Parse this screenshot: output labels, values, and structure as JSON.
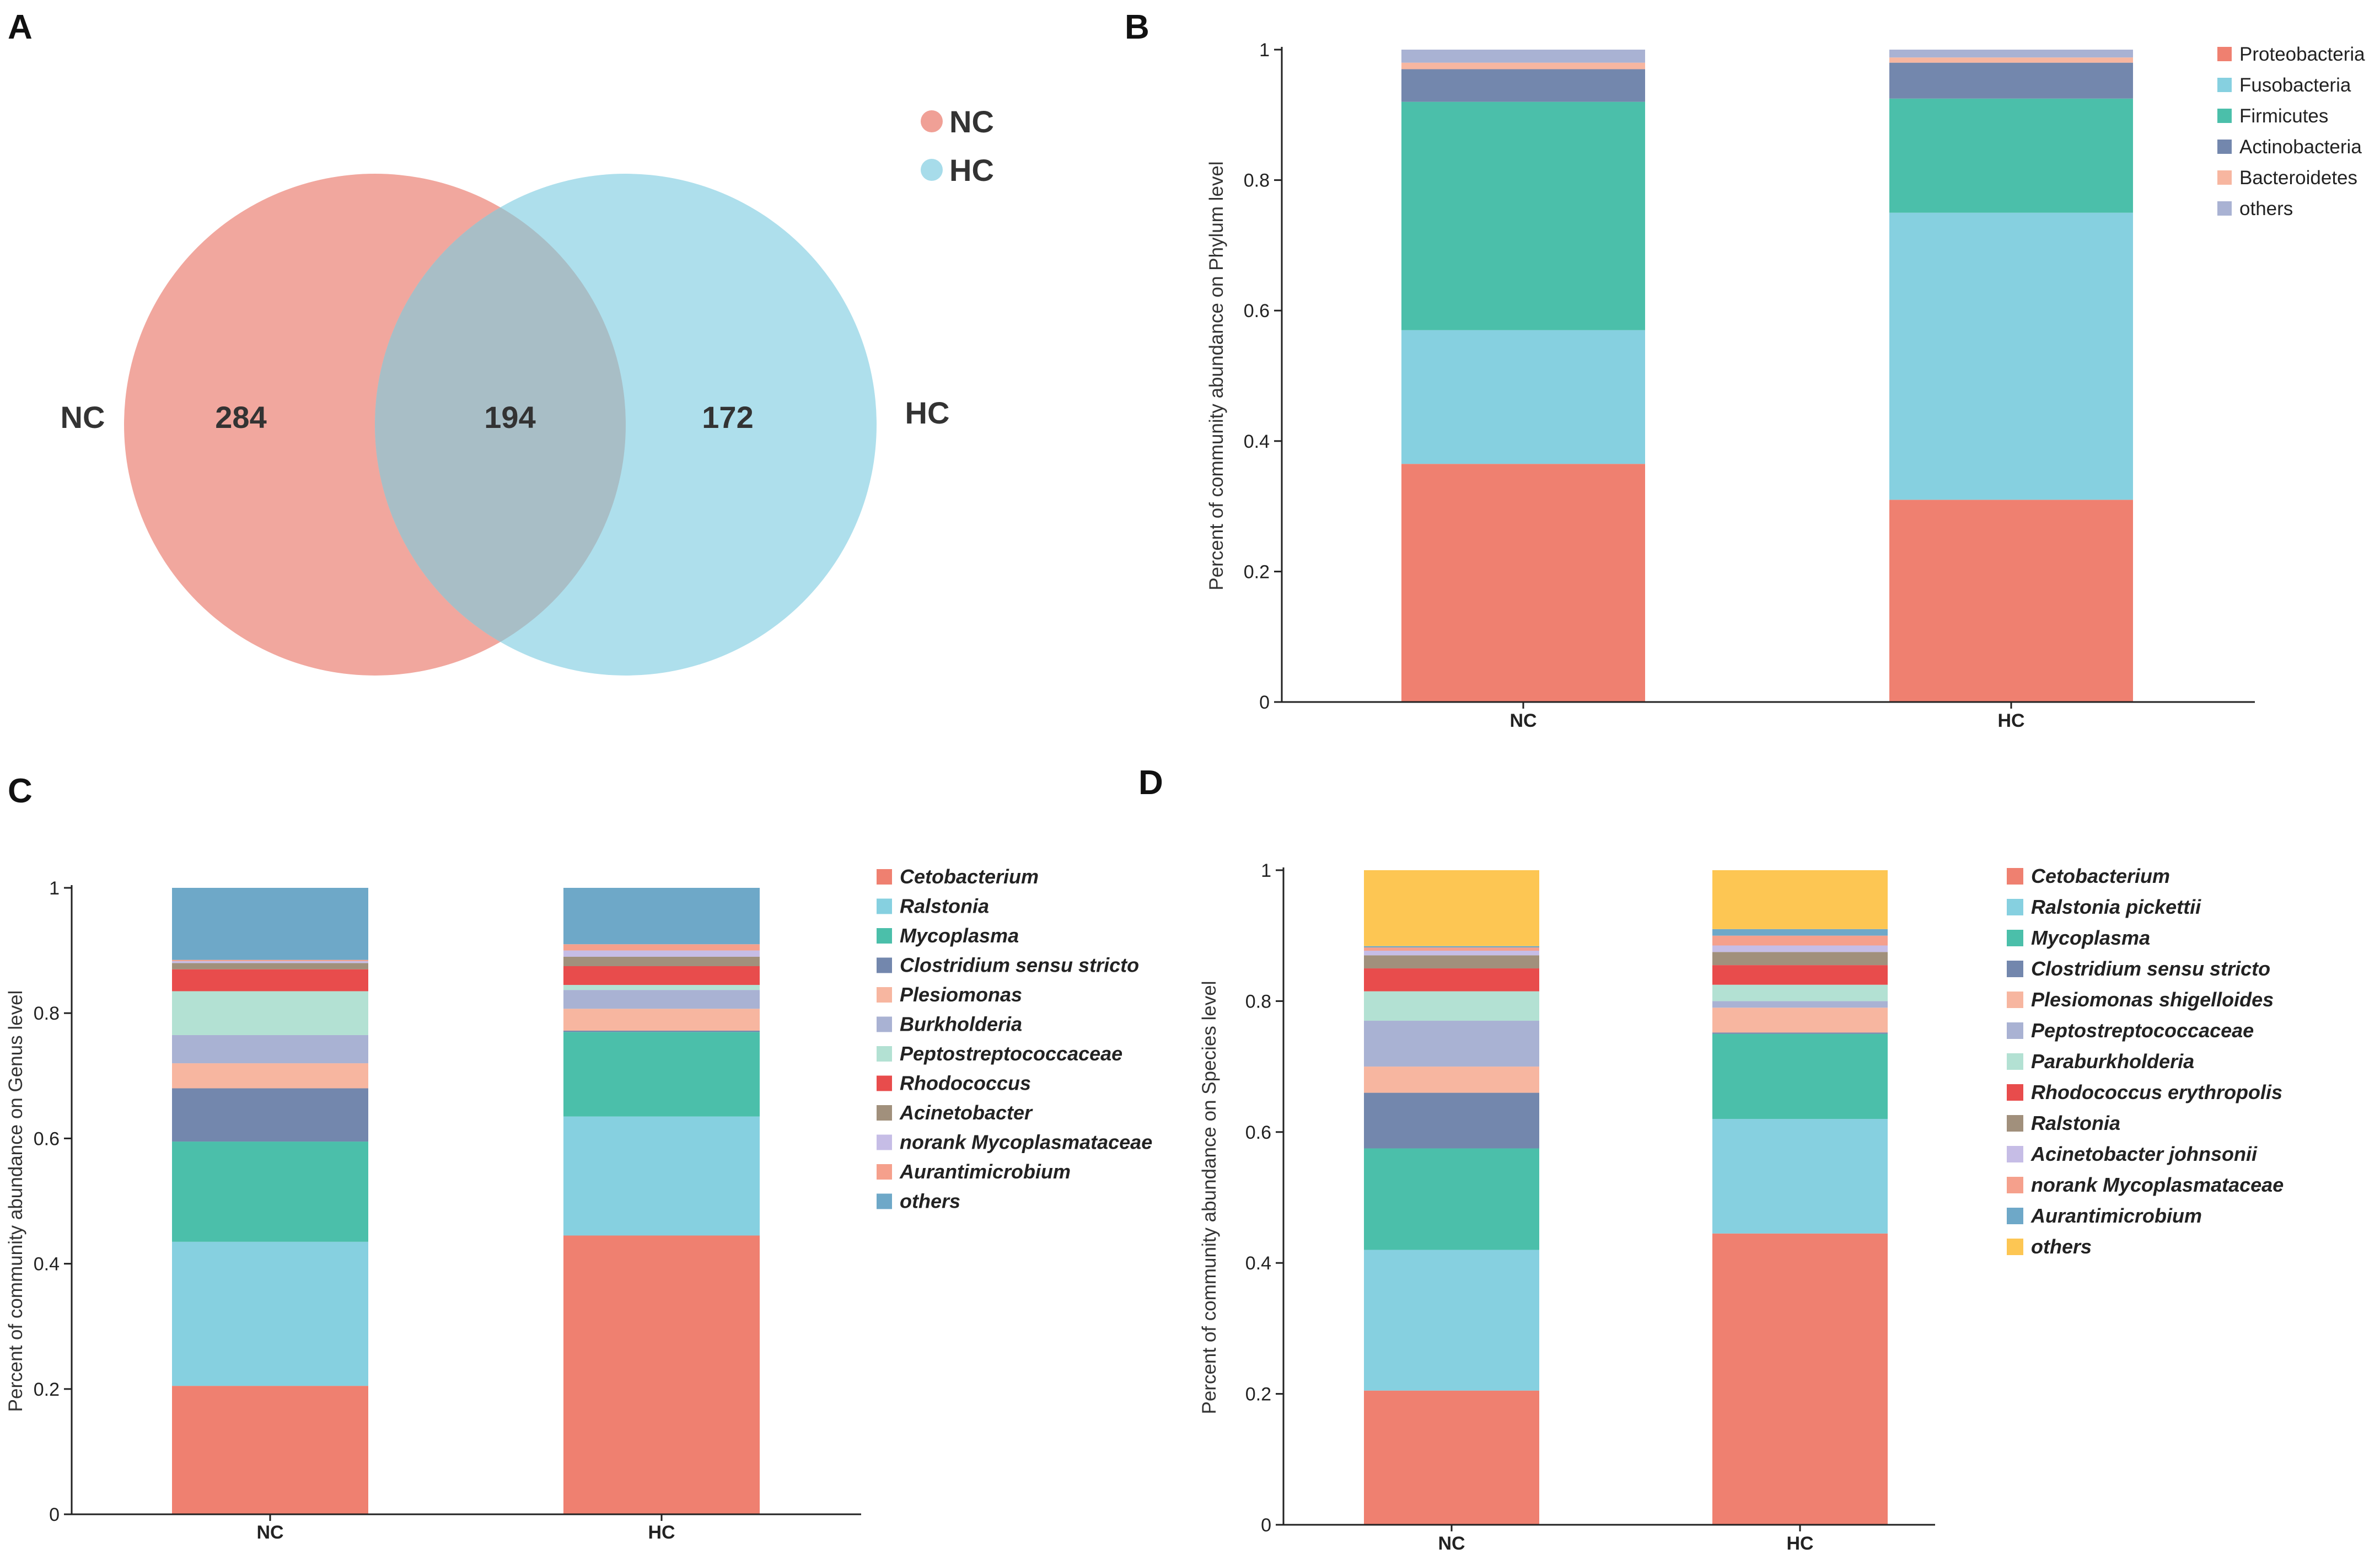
{
  "panels": {
    "A": "A",
    "B": "B",
    "C": "C",
    "D": "D"
  },
  "venn": {
    "legend": [
      {
        "name": "NC",
        "color": "#f0a096"
      },
      {
        "name": "HC",
        "color": "#a7dcea"
      }
    ],
    "left_label": "NC",
    "right_label": "HC",
    "left_only": "284",
    "overlap": "194",
    "right_only": "172"
  },
  "chart_data": [
    {
      "id": "B",
      "type": "bar",
      "stacked": true,
      "ylabel": "Percent of community abundance on Phylum level",
      "categories": [
        "NC",
        "HC"
      ],
      "ylim": [
        0,
        1
      ],
      "yticks": [
        "0",
        "0.2",
        "0.4",
        "0.6",
        "0.8",
        "1"
      ],
      "italic_legend": false,
      "series": [
        {
          "name": "Proteobacteria",
          "color": "#ef8070",
          "values": [
            0.365,
            0.31
          ]
        },
        {
          "name": "Fusobacteria",
          "color": "#86d0e0",
          "values": [
            0.205,
            0.44
          ]
        },
        {
          "name": "Firmicutes",
          "color": "#4bbfaa",
          "values": [
            0.35,
            0.175
          ]
        },
        {
          "name": "Actinobacteria",
          "color": "#7387ad",
          "values": [
            0.05,
            0.055
          ]
        },
        {
          "name": "Bacteroidetes",
          "color": "#f7b6a0",
          "values": [
            0.01,
            0.008
          ]
        },
        {
          "name": "others",
          "color": "#a9b2d3",
          "values": [
            0.02,
            0.012
          ]
        }
      ]
    },
    {
      "id": "C",
      "type": "bar",
      "stacked": true,
      "ylabel": "Percent of community abundance on Genus level",
      "categories": [
        "NC",
        "HC"
      ],
      "ylim": [
        0,
        1
      ],
      "yticks": [
        "0",
        "0.2",
        "0.4",
        "0.6",
        "0.8",
        "1"
      ],
      "italic_legend": true,
      "series": [
        {
          "name": "Cetobacterium",
          "color": "#ef8070",
          "values": [
            0.205,
            0.445
          ]
        },
        {
          "name": "Ralstonia",
          "color": "#86d0e0",
          "values": [
            0.23,
            0.19
          ]
        },
        {
          "name": "Mycoplasma",
          "color": "#4bbfaa",
          "values": [
            0.16,
            0.135
          ]
        },
        {
          "name": "Clostridium  sensu  stricto",
          "color": "#7387ad",
          "values": [
            0.085,
            0.002
          ]
        },
        {
          "name": "Plesiomonas",
          "color": "#f7b6a0",
          "values": [
            0.04,
            0.035
          ]
        },
        {
          "name": "Burkholderia",
          "color": "#a9b2d3",
          "values": [
            0.045,
            0.03
          ]
        },
        {
          "name": "Peptostreptococcaceae",
          "color": "#b3e1d3",
          "values": [
            0.07,
            0.008
          ]
        },
        {
          "name": "Rhodococcus",
          "color": "#e84c4c",
          "values": [
            0.035,
            0.03
          ]
        },
        {
          "name": "Acinetobacter",
          "color": "#a1907c",
          "values": [
            0.01,
            0.015
          ]
        },
        {
          "name": "norank  Mycoplasmataceae",
          "color": "#c6bde6",
          "values": [
            0.003,
            0.01
          ]
        },
        {
          "name": "Aurantimicrobium",
          "color": "#f5a08c",
          "values": [
            0.002,
            0.01
          ]
        },
        {
          "name": "others",
          "color": "#6ea8c8",
          "values": [
            0.115,
            0.09
          ]
        }
      ]
    },
    {
      "id": "D",
      "type": "bar",
      "stacked": true,
      "ylabel": "Percent of community abundance on Species level",
      "categories": [
        "NC",
        "HC"
      ],
      "ylim": [
        0,
        1
      ],
      "yticks": [
        "0",
        "0.2",
        "0.4",
        "0.6",
        "0.8",
        "1"
      ],
      "italic_legend": true,
      "series": [
        {
          "name": "Cetobacterium",
          "color": "#ef8070",
          "values": [
            0.205,
            0.445
          ]
        },
        {
          "name": "Ralstonia  pickettii",
          "color": "#86d0e0",
          "values": [
            0.215,
            0.175
          ]
        },
        {
          "name": "Mycoplasma",
          "color": "#4bbfaa",
          "values": [
            0.155,
            0.13
          ]
        },
        {
          "name": "Clostridium  sensu  stricto",
          "color": "#7387ad",
          "values": [
            0.085,
            0.002
          ]
        },
        {
          "name": "Plesiomonas  shigelloides",
          "color": "#f7b6a0",
          "values": [
            0.04,
            0.038
          ]
        },
        {
          "name": "Peptostreptococcaceae",
          "color": "#a9b2d3",
          "values": [
            0.07,
            0.01
          ]
        },
        {
          "name": "Paraburkholderia",
          "color": "#b3e1d3",
          "values": [
            0.045,
            0.025
          ]
        },
        {
          "name": "Rhodococcus  erythropolis",
          "color": "#e84c4c",
          "values": [
            0.035,
            0.03
          ]
        },
        {
          "name": "Ralstonia",
          "color": "#a1907c",
          "values": [
            0.02,
            0.02
          ]
        },
        {
          "name": "Acinetobacter  johnsonii",
          "color": "#c6bde6",
          "values": [
            0.007,
            0.01
          ]
        },
        {
          "name": "norank  Mycoplasmataceae",
          "color": "#f5a08c",
          "values": [
            0.005,
            0.015
          ]
        },
        {
          "name": "Aurantimicrobium",
          "color": "#6ea8c8",
          "values": [
            0.002,
            0.01
          ]
        },
        {
          "name": "others",
          "color": "#fdc653",
          "values": [
            0.116,
            0.09
          ]
        }
      ]
    }
  ]
}
